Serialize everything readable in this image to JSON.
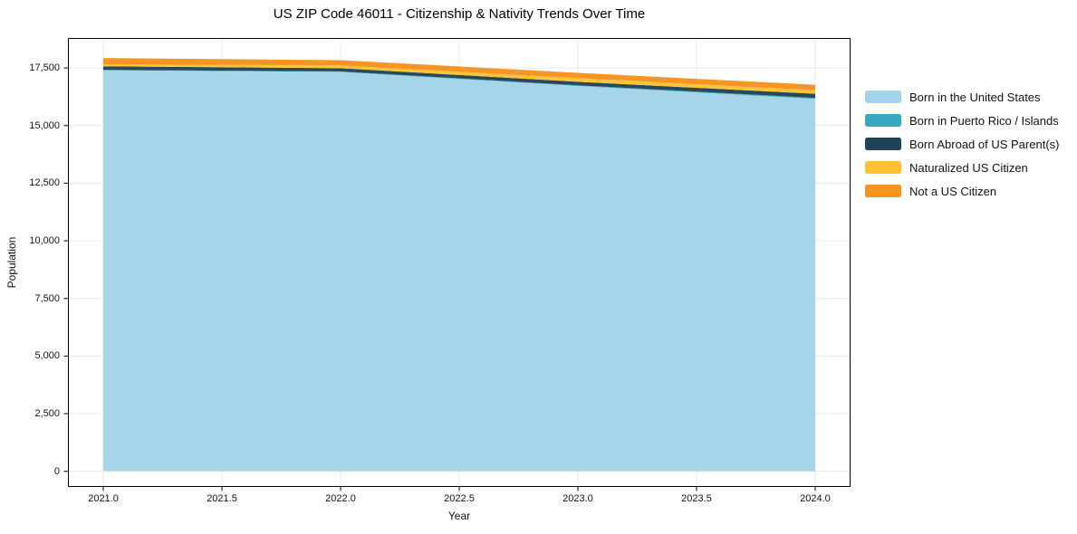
{
  "title": "US ZIP Code 46011 - Citizenship & Nativity Trends Over Time",
  "chart_data": {
    "type": "area",
    "stacked": true,
    "title": "US ZIP Code 46011 - Citizenship & Nativity Trends Over Time",
    "xlabel": "Year",
    "ylabel": "Population",
    "x": [
      2021,
      2022,
      2023,
      2024
    ],
    "series": [
      {
        "name": "Born in the United States",
        "color": "#a3d3e8",
        "values": [
          17400,
          17330,
          16720,
          16160
        ]
      },
      {
        "name": "Born in Puerto Rico / Islands",
        "color": "#3aa8c1",
        "values": [
          20,
          20,
          30,
          40
        ]
      },
      {
        "name": "Born Abroad of US Parent(s)",
        "color": "#1f4456",
        "values": [
          150,
          140,
          150,
          180
        ]
      },
      {
        "name": "Naturalized US Citizen",
        "color": "#fcc22f",
        "values": [
          90,
          120,
          160,
          150
        ]
      },
      {
        "name": "Not a US Citizen",
        "color": "#f6921e",
        "values": [
          270,
          230,
          230,
          240
        ]
      }
    ],
    "totals": [
      17930,
      17840,
      17290,
      16770
    ],
    "x_ticks": [
      "2021.0",
      "2021.5",
      "2022.0",
      "2022.5",
      "2023.0",
      "2023.5",
      "2024.0"
    ],
    "y_ticks": [
      "0",
      "2,500",
      "5,000",
      "7,500",
      "10,000",
      "12,500",
      "15,000",
      "17,500"
    ],
    "xlim": [
      2020.851,
      2024.149
    ],
    "ylim": [
      -680,
      18800
    ],
    "grid": true,
    "grid_color": "#e9e9e9",
    "axis_color": "#000000",
    "legend_position": "right"
  }
}
